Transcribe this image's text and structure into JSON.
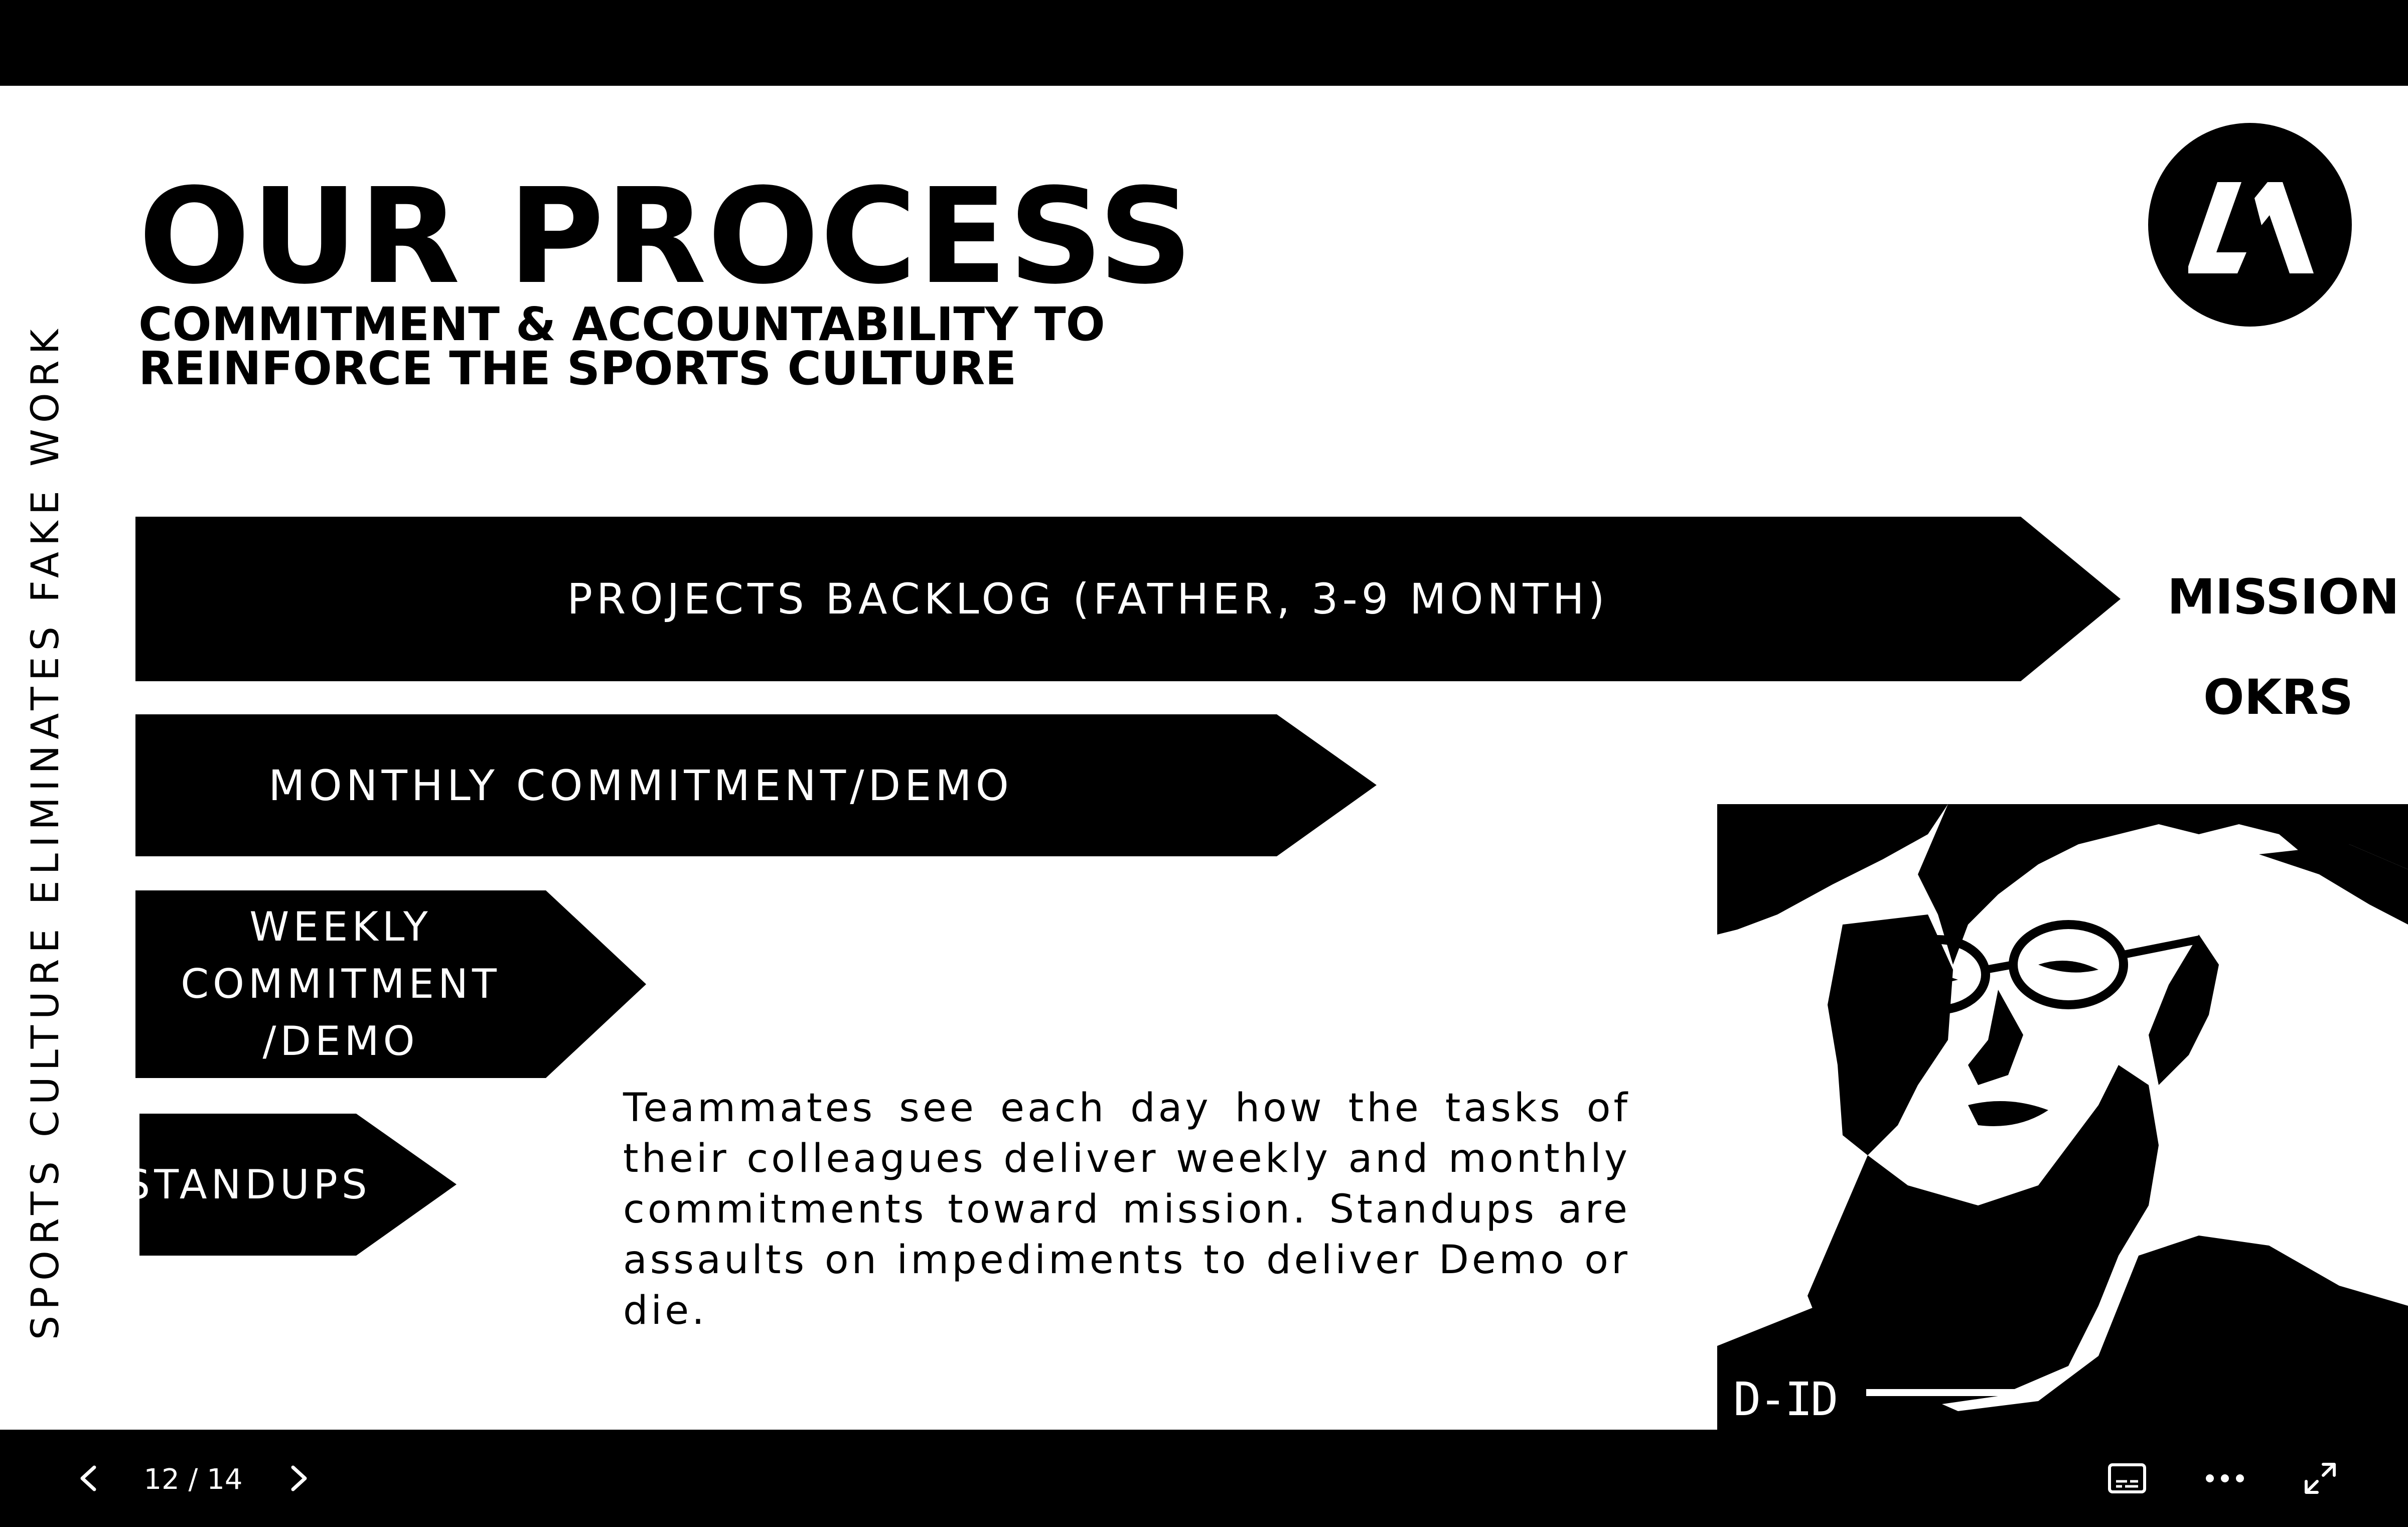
{
  "slide": {
    "title": "OUR PROCESS",
    "subtitle_line1": "COMMITMENT & ACCOUNTABILITY TO",
    "subtitle_line2": "REINFORCE THE SPORTS CULTURE",
    "vertical_tagline": "SPORTS CULTURE ELIMINATES FAKE WORK",
    "logo_icon": "brand-logo-icon",
    "arrows": {
      "backlog": "PROJECTS BACKLOG (FATHER, 3-9 MONTH)",
      "monthly": "MONTHLY COMMITMENT/DEMO",
      "weekly": "WEEKLY\nCOMMITMENT\n/DEMO",
      "standups": "STANDUPS"
    },
    "side_labels": {
      "mission": "MISSION",
      "okrs": "OKRS"
    },
    "body_text": "Teammates see each day how the tasks of their colleagues  deliver weekly and monthly commitments toward mission. Standups are assaults on impediments to deliver Demo or die.",
    "photo_watermark": "D-ID"
  },
  "controls": {
    "page_counter": "12 / 14",
    "prev_icon": "chevron-left-icon",
    "next_icon": "chevron-right-icon",
    "captions_icon": "captions-icon",
    "more_icon": "more-options-icon",
    "fullscreen_icon": "fullscreen-icon"
  },
  "colors": {
    "background": "#000000",
    "slide": "#ffffff",
    "text": "#000000",
    "arrow_text": "#ffffff"
  }
}
